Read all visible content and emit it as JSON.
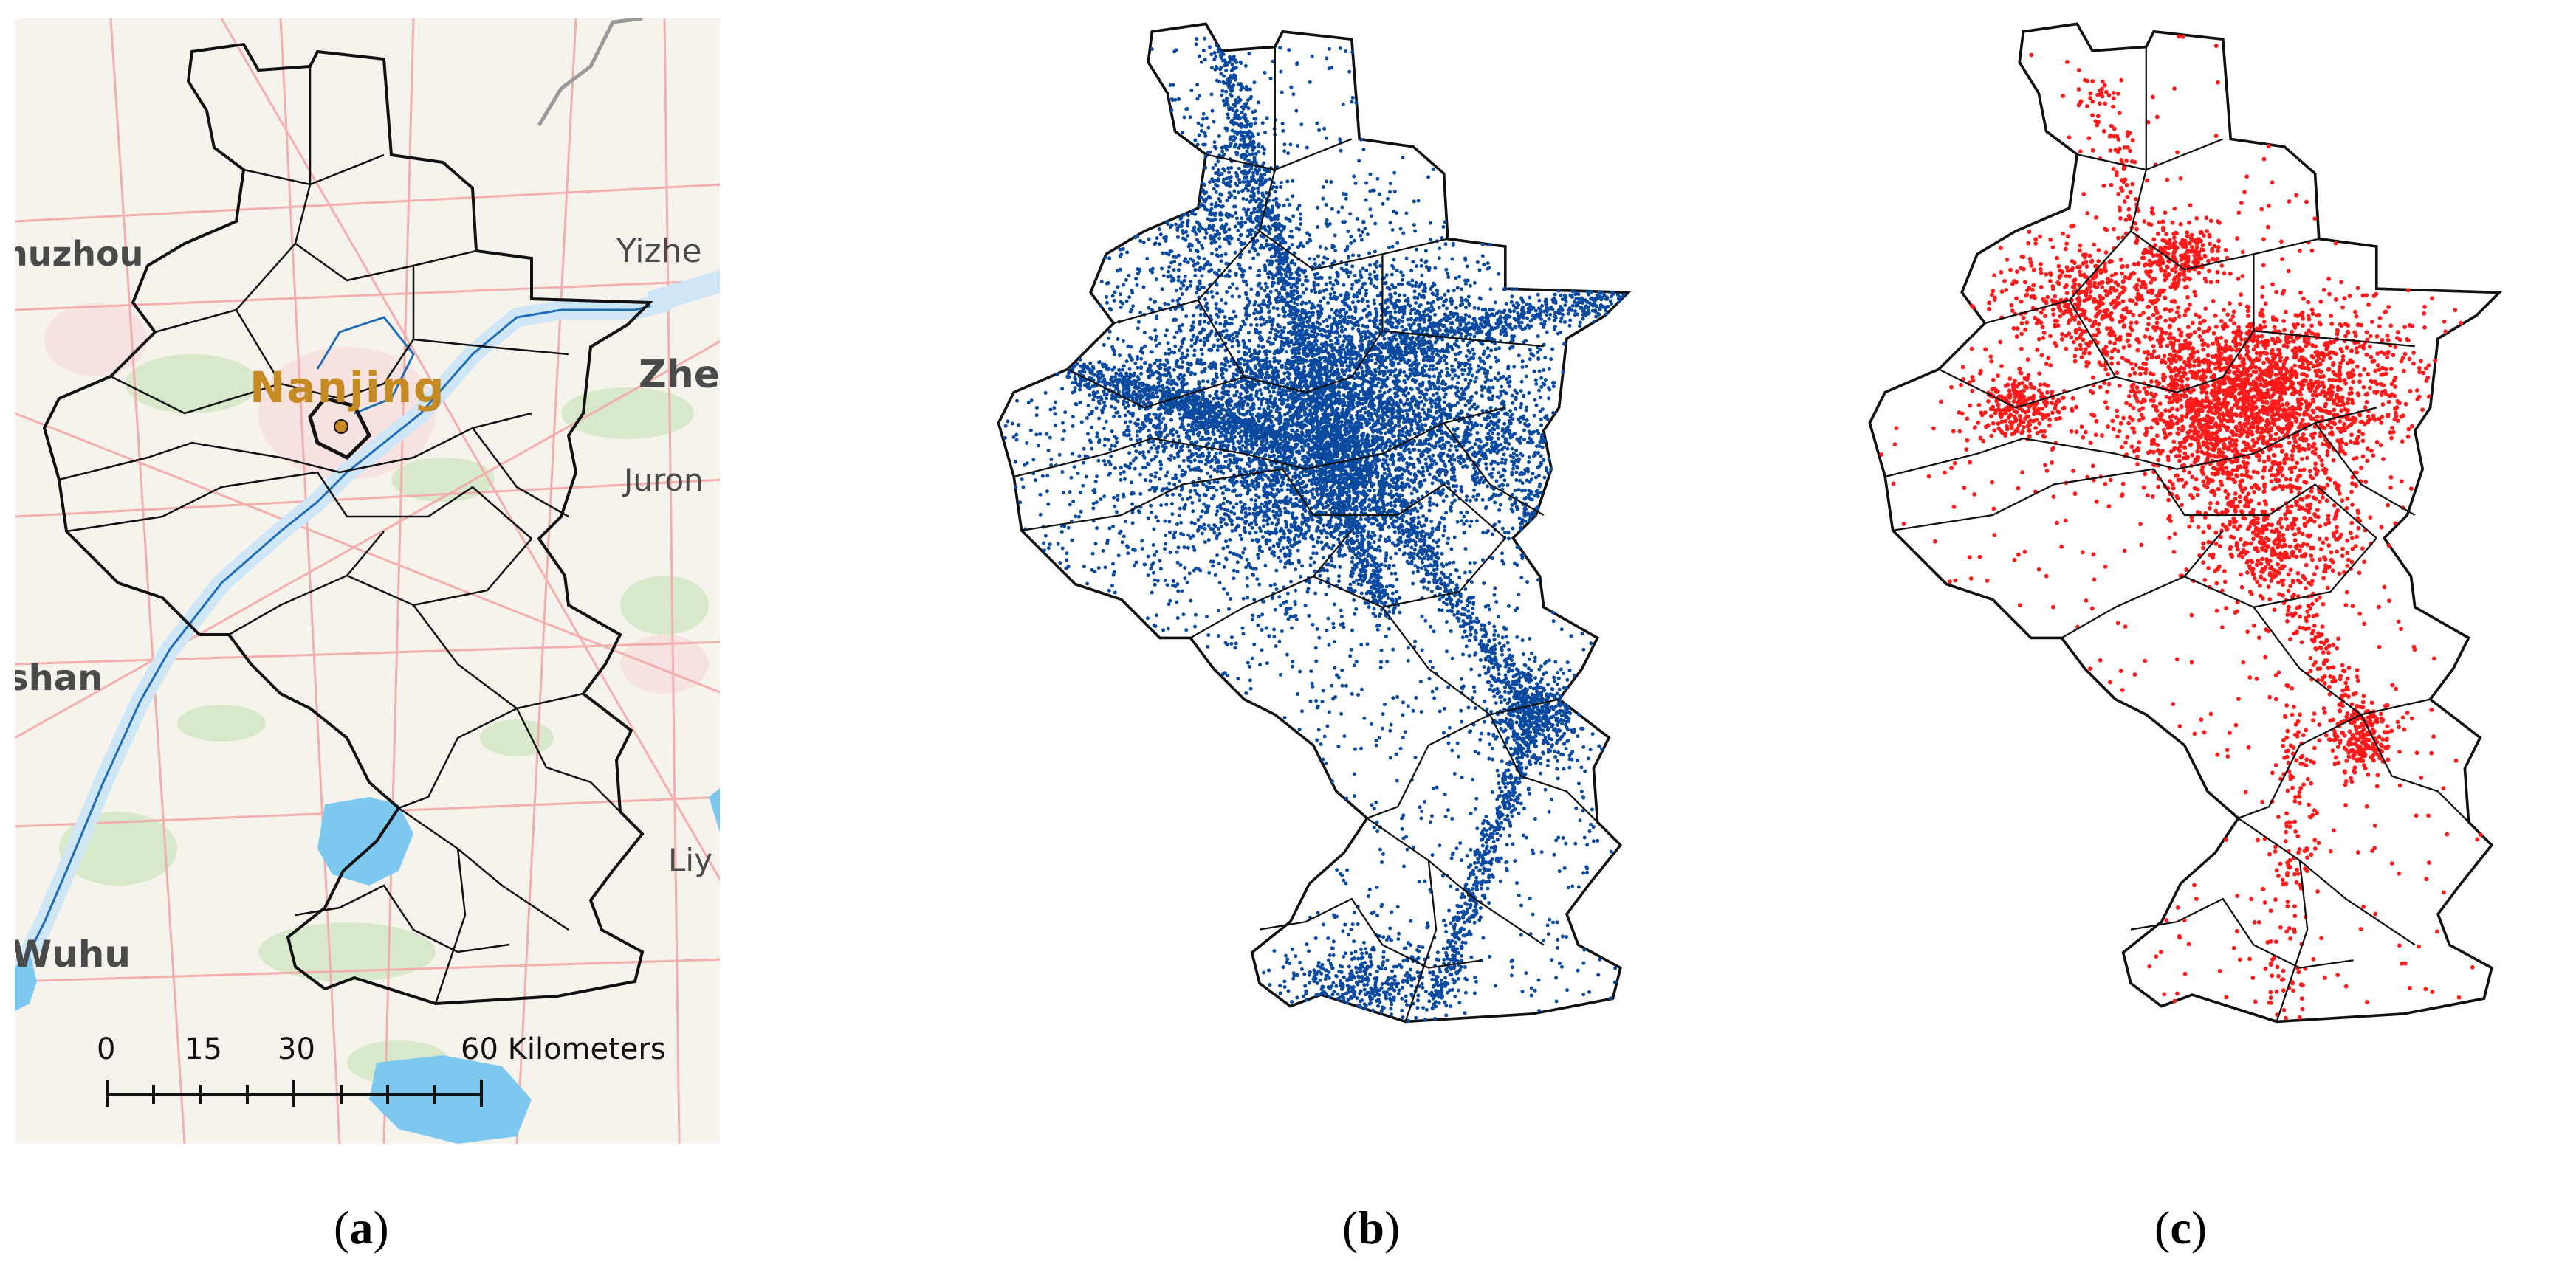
{
  "panel_a": {
    "place_labels": [
      "huzhou",
      "Yizhe",
      "Zhe",
      "Nanjing",
      "Juron",
      "shan",
      "Liy",
      "Wuhu"
    ],
    "scale_bar": {
      "ticks": [
        "0",
        "15",
        "30",
        "60 Kilometers"
      ]
    }
  },
  "panel_b": {},
  "panel_c": {},
  "captions": {
    "a": "a",
    "b": "b",
    "c": "c"
  },
  "colors": {
    "boundary": "#111111",
    "river": "#1f6db5",
    "river_fill": "#cfe6f6",
    "lake": "#7dc8ee",
    "road": "#f2a2a2",
    "green": "#cfe6c2",
    "label_orange": "#c68a25",
    "label_gray": "#4a4a4a",
    "points_b": "#0a4aa0",
    "points_c": "#ff1b1b"
  }
}
